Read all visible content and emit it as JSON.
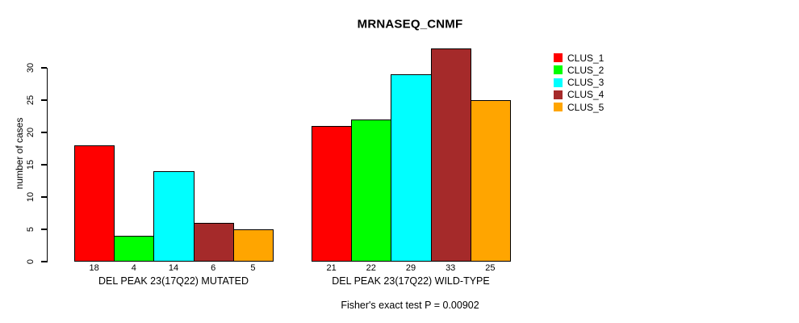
{
  "chart_data": {
    "type": "bar",
    "title": "MRNASEQ_CNMF",
    "ylabel": "number of cases",
    "xlabel": "",
    "yticks": [
      0,
      5,
      10,
      15,
      20,
      25,
      30
    ],
    "ylim": [
      0,
      33.5
    ],
    "grid": false,
    "legend_position": "right",
    "bar_value_labels": true,
    "categories": [
      "DEL PEAK 23(17Q22) MUTATED",
      "DEL PEAK 23(17Q22) WILD-TYPE"
    ],
    "series": [
      {
        "name": "CLUS_1",
        "color": "#FF0000",
        "values": [
          18,
          21
        ]
      },
      {
        "name": "CLUS_2",
        "color": "#00FF00",
        "values": [
          4,
          22
        ]
      },
      {
        "name": "CLUS_3",
        "color": "#00FFFF",
        "values": [
          14,
          29
        ]
      },
      {
        "name": "CLUS_4",
        "color": "#A52A2A",
        "values": [
          6,
          33
        ]
      },
      {
        "name": "CLUS_5",
        "color": "#FFA500",
        "values": [
          5,
          25
        ]
      }
    ],
    "annotation": "Fisher's exact test P = 0.00902"
  },
  "colors": {
    "background": "#FFFFFF",
    "axis": "#000000",
    "text": "#000000"
  }
}
